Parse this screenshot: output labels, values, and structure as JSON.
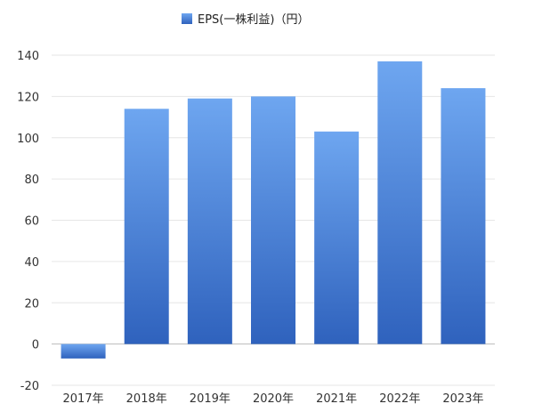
{
  "chart_data": {
    "type": "bar",
    "categories": [
      "2017年",
      "2018年",
      "2019年",
      "2020年",
      "2021年",
      "2022年",
      "2023年"
    ],
    "series": [
      {
        "name": "EPS(一株利益)（円）",
        "values": [
          -7,
          114,
          119,
          120,
          103,
          137,
          124
        ]
      }
    ],
    "ylim": [
      -20,
      140
    ],
    "yticks": [
      "140",
      "120",
      "100",
      "80",
      "60",
      "40",
      "20",
      "0",
      "-20"
    ],
    "ytick_values": [
      140,
      120,
      100,
      80,
      60,
      40,
      20,
      0,
      -20
    ],
    "grid": true,
    "legend_position": "top-center",
    "colors": {
      "bar_top": "#6ea6f0",
      "bar_bottom": "#2f62bd",
      "legend_swatch": "#3a7be0"
    }
  }
}
